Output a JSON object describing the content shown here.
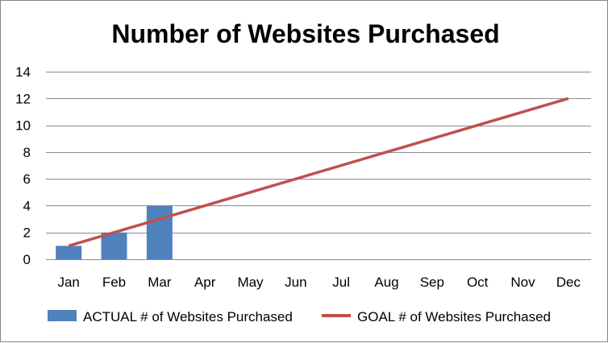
{
  "chart_data": {
    "type": "bar",
    "title": "Number of Websites Purchased",
    "xlabel": "",
    "ylabel": "",
    "categories": [
      "Jan",
      "Feb",
      "Mar",
      "Apr",
      "May",
      "Jun",
      "Jul",
      "Aug",
      "Sep",
      "Oct",
      "Nov",
      "Dec"
    ],
    "ylim": [
      0,
      14
    ],
    "yticks": [
      0,
      2,
      4,
      6,
      8,
      10,
      12,
      14
    ],
    "grid": true,
    "legend_position": "bottom",
    "series": [
      {
        "name": "ACTUAL # of Websites Purchased",
        "type": "bar",
        "color": "#4F81BD",
        "values": [
          1,
          2,
          4,
          null,
          null,
          null,
          null,
          null,
          null,
          null,
          null,
          null
        ]
      },
      {
        "name": "GOAL # of Websites Purchased",
        "type": "line",
        "color": "#C0504D",
        "values": [
          1,
          2,
          3,
          4,
          5,
          6,
          7,
          8,
          9,
          10,
          11,
          12
        ]
      }
    ]
  }
}
